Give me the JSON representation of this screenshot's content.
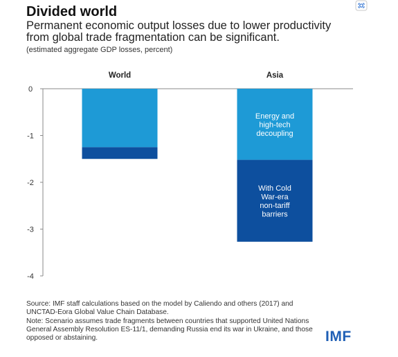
{
  "header": {
    "title": "Divided world",
    "subtitle": "Permanent economic output losses due to lower productivity from global trade fragmentation can be significant.",
    "note": "(estimated aggregate GDP losses, percent)"
  },
  "chart_data": {
    "type": "bar",
    "stacked": true,
    "categories": [
      "World",
      "Asia"
    ],
    "ylim": [
      -4,
      0
    ],
    "yticks": [
      "0",
      "-1",
      "-2",
      "-3",
      "-4"
    ],
    "grid": false,
    "series": [
      {
        "name": "Energy and high-tech decoupling",
        "values": [
          -1.25,
          -1.52
        ],
        "color": "#1e9ad6"
      },
      {
        "name": "With Cold War-era non-tariff barriers",
        "values": [
          -0.25,
          -1.75
        ],
        "color": "#0d4f9e"
      }
    ],
    "annotations": [
      {
        "category": "Asia",
        "series": 0,
        "lines": [
          "Energy and",
          "high-tech",
          "decoupling"
        ]
      },
      {
        "category": "Asia",
        "series": 1,
        "lines": [
          "With Cold",
          "War-era",
          "non-tariff",
          "barriers"
        ]
      }
    ]
  },
  "footer": {
    "source": "Source: IMF staff calculations based on the model by Caliendo and others (2017) and UNCTAD-Eora Global Value Chain Database.",
    "note": "Note: Scenario assumes trade fragments between countries that supported United Nations General Assembly Resolution ES-11/1, demanding Russia end its war in Ukraine, and those opposed or abstaining."
  },
  "logo": "IMF",
  "icons": {
    "corner": "expand-icon"
  }
}
